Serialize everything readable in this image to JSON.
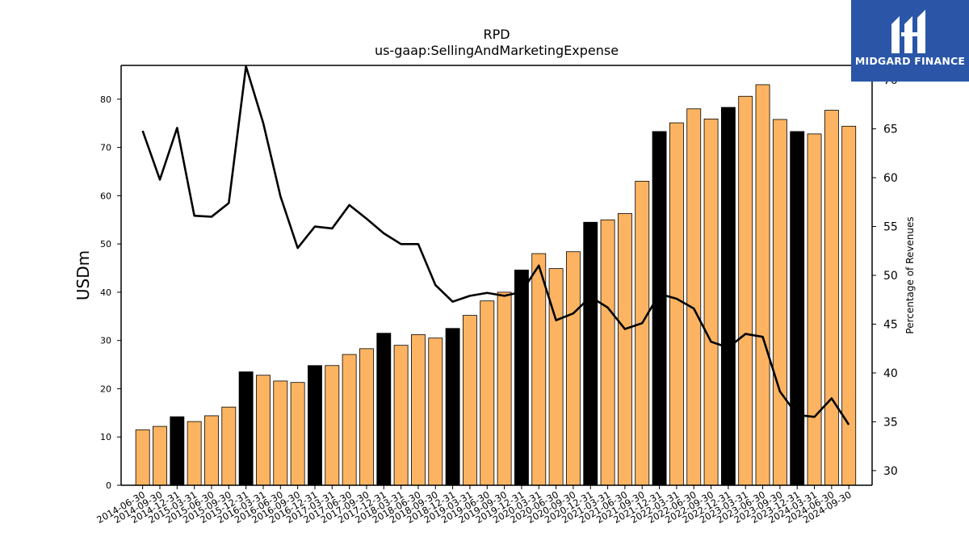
{
  "brand": {
    "name": "MIDGARD FINANCE",
    "icon": "midgard-logo-icon",
    "bg_color": "#2b56a8"
  },
  "chart_data": {
    "type": "bar",
    "title": "RPD",
    "subtitle": "us-gaap:SellingAndMarketingExpense",
    "ylabel": "USDm",
    "y2label": "Percentage of Revenues",
    "ylim": [
      0,
      87
    ],
    "y2lim": [
      28.5,
      71.5
    ],
    "yticks": [
      0,
      10,
      20,
      30,
      40,
      50,
      60,
      70,
      80
    ],
    "y2ticks": [
      30,
      35,
      40,
      45,
      50,
      55,
      60,
      65,
      70
    ],
    "bar_color": "#fdb462",
    "highlight_color": "#000000",
    "line_color": "#000000",
    "categories": [
      "2014-06-30",
      "2014-09-30",
      "2014-12-31",
      "2015-03-31",
      "2015-06-30",
      "2015-09-30",
      "2015-12-31",
      "2016-03-31",
      "2016-06-30",
      "2016-09-30",
      "2016-12-31",
      "2017-03-31",
      "2017-06-30",
      "2017-09-30",
      "2017-12-31",
      "2018-03-31",
      "2018-06-30",
      "2018-09-30",
      "2018-12-31",
      "2019-03-31",
      "2019-06-30",
      "2019-09-30",
      "2019-12-31",
      "2020-03-31",
      "2020-06-30",
      "2020-09-30",
      "2020-12-31",
      "2021-03-31",
      "2021-06-30",
      "2021-09-30",
      "2021-12-31",
      "2022-03-31",
      "2022-06-30",
      "2022-09-30",
      "2022-12-31",
      "2023-03-31",
      "2023-06-30",
      "2023-09-30",
      "2023-12-31",
      "2024-03-31",
      "2024-06-30",
      "2024-09-30"
    ],
    "series": [
      {
        "type": "bar",
        "values": [
          11.5,
          12.2,
          14.2,
          13.2,
          14.4,
          16.2,
          23.5,
          22.8,
          21.6,
          21.3,
          24.8,
          24.8,
          27.1,
          28.3,
          31.5,
          29.0,
          31.2,
          30.5,
          32.5,
          35.2,
          38.2,
          40.0,
          44.6,
          48.0,
          44.9,
          48.4,
          54.5,
          55.0,
          56.3,
          63.0,
          73.3,
          75.1,
          78.0,
          75.9,
          78.3,
          80.6,
          83.0,
          75.8,
          73.3,
          72.8,
          77.7,
          74.4
        ],
        "highlight": [
          false,
          false,
          true,
          false,
          false,
          false,
          true,
          false,
          false,
          false,
          true,
          false,
          false,
          false,
          true,
          false,
          false,
          false,
          true,
          false,
          false,
          false,
          true,
          false,
          false,
          false,
          true,
          false,
          false,
          false,
          true,
          false,
          false,
          false,
          true,
          false,
          false,
          false,
          true,
          false,
          false,
          false
        ]
      },
      {
        "type": "line",
        "axis": "right",
        "values": [
          64.8,
          59.8,
          65.1,
          56.1,
          56.0,
          57.4,
          71.4,
          65.6,
          58.1,
          52.8,
          55.0,
          54.8,
          57.2,
          55.8,
          54.3,
          53.2,
          53.2,
          49.0,
          47.3,
          47.9,
          48.2,
          47.9,
          48.3,
          51.0,
          45.4,
          46.1,
          47.8,
          46.7,
          44.5,
          45.1,
          48.1,
          47.6,
          46.6,
          43.2,
          42.6,
          44.0,
          43.7,
          38.1,
          35.7,
          35.5,
          37.4,
          34.7
        ]
      }
    ]
  }
}
